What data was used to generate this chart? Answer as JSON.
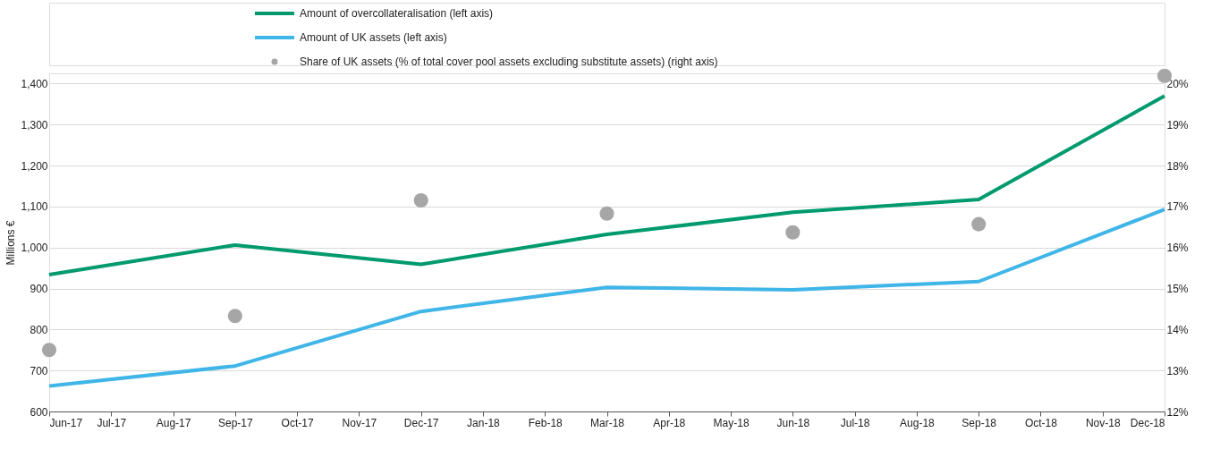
{
  "chart_data": {
    "type": "line",
    "ylabel": "Millions €",
    "categories": [
      "Jun-17",
      "Jul-17",
      "Aug-17",
      "Sep-17",
      "Oct-17",
      "Nov-17",
      "Dec-17",
      "Jan-18",
      "Feb-18",
      "Mar-18",
      "Apr-18",
      "May-18",
      "Jun-18",
      "Jul-18",
      "Aug-18",
      "Sep-18",
      "Oct-18",
      "Nov-18",
      "Dec-18"
    ],
    "series": [
      {
        "name": "Amount of overcollateralisation (left axis)",
        "color": "#009a6e",
        "values": [
          934,
          null,
          null,
          1006,
          null,
          null,
          959,
          null,
          null,
          1032,
          null,
          null,
          1086,
          null,
          null,
          1117,
          null,
          null,
          1370
        ]
      },
      {
        "name": "Amount of UK assets (left axis)",
        "color": "#3fb5e8",
        "values": [
          662,
          null,
          null,
          711,
          null,
          null,
          844,
          null,
          null,
          903,
          null,
          null,
          897,
          null,
          null,
          917,
          null,
          null,
          1093
        ]
      },
      {
        "name": "Share of UK assets (% of total cover pool assets excluding substitute assets) (right axis)",
        "color": "#a6a6a6",
        "type": "scatter",
        "axis": "y2",
        "marker": "circle",
        "values": [
          13.5,
          null,
          null,
          14.33,
          null,
          null,
          17.15,
          null,
          null,
          16.83,
          null,
          null,
          16.37,
          null,
          null,
          16.57,
          null,
          null,
          20.19
        ]
      }
    ],
    "ylim": [
      600,
      1425
    ],
    "yticks": [
      600,
      700,
      800,
      900,
      {
        "value": 1000,
        "label": "1,000"
      },
      {
        "value": 1100,
        "label": "1,100"
      },
      {
        "value": 1200,
        "label": "1,200"
      },
      {
        "value": 1300,
        "label": "1,300"
      },
      {
        "value": 1400,
        "label": "1,400"
      }
    ],
    "y2lim": [
      12,
      20.25
    ],
    "y2ticks": [
      {
        "value": 12,
        "label": "12%"
      },
      {
        "value": 13,
        "label": "13%"
      },
      {
        "value": 14,
        "label": "14%"
      },
      {
        "value": 15,
        "label": "15%"
      },
      {
        "value": 16,
        "label": "16%"
      },
      {
        "value": 17,
        "label": "17%"
      },
      {
        "value": 18,
        "label": "18%"
      },
      {
        "value": 19,
        "label": "19%"
      },
      {
        "value": 20,
        "label": "20%"
      }
    ],
    "grid": "y",
    "legend": "top"
  }
}
